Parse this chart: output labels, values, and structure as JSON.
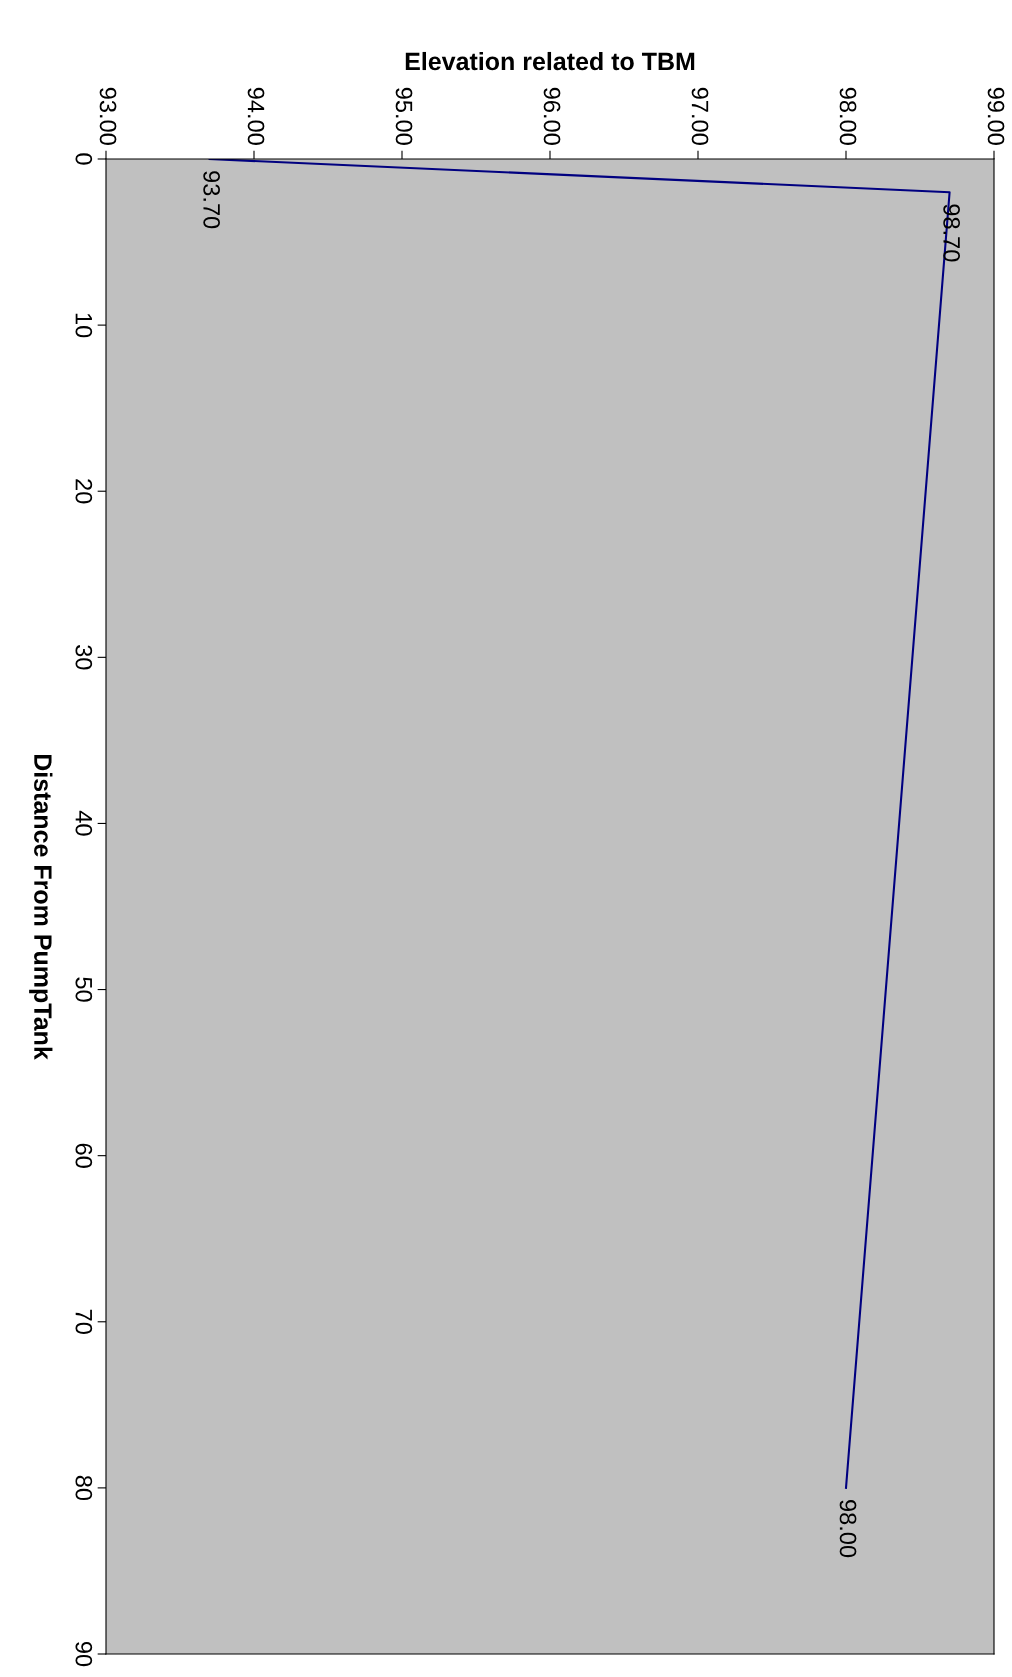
{
  "chart_data": {
    "type": "line",
    "xlabel": "Elevation related to TBM",
    "ylabel": "Distance From PumpTank",
    "x": [
      93.7,
      98.7,
      98.0
    ],
    "series": [
      {
        "color": "#000080",
        "values": [
          0,
          2,
          80
        ]
      }
    ],
    "annotations": [
      {
        "text": "93.70",
        "x": 93.7,
        "y": 0
      },
      {
        "text": "98.70",
        "x": 98.7,
        "y": 2
      },
      {
        "text": "98.00",
        "x": 98.0,
        "y": 80
      }
    ],
    "ylim": [
      90,
      0
    ],
    "yticks": [
      0,
      10,
      20,
      30,
      40,
      50,
      60,
      70,
      80,
      90
    ],
    "xlim": [
      93,
      99
    ],
    "xticks": [
      {
        "value": 93,
        "label": "93.00"
      },
      {
        "value": 94,
        "label": "94.00"
      },
      {
        "value": 95,
        "label": "95.00"
      },
      {
        "value": 96,
        "label": "96.00"
      },
      {
        "value": 97,
        "label": "97.00"
      },
      {
        "value": 98,
        "label": "98.00"
      },
      {
        "value": 99,
        "label": "99.00"
      }
    ],
    "grid": false,
    "legend": false,
    "marker": "none",
    "line_style": "solid"
  }
}
